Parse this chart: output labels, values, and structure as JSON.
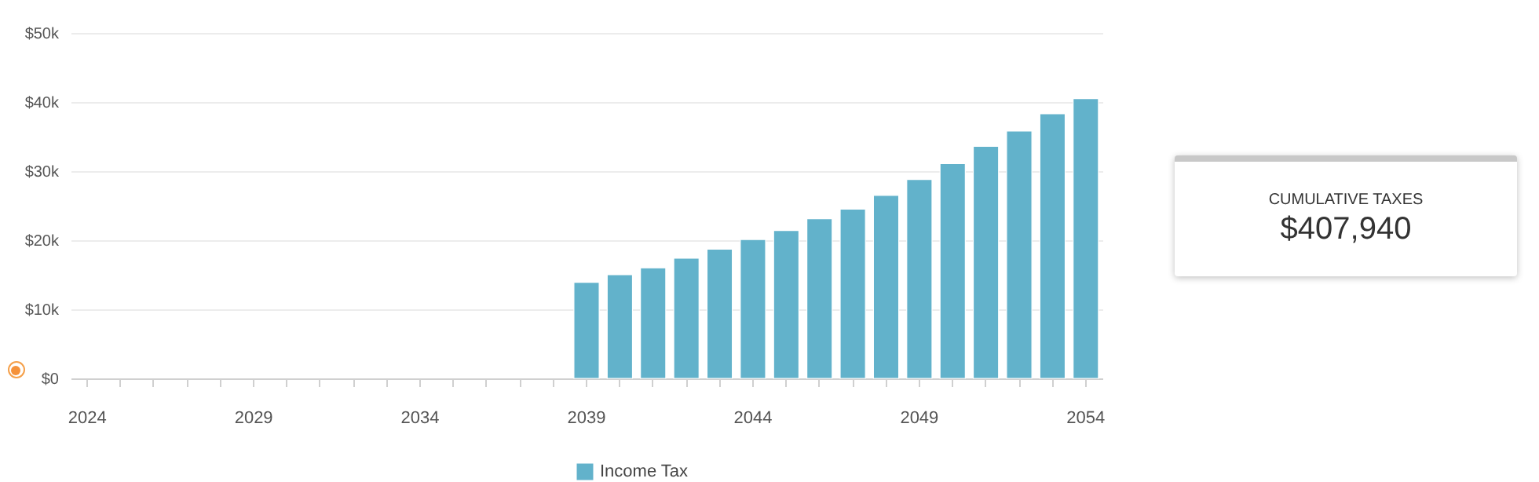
{
  "chart_data": [
    {
      "type": "bar",
      "categories": [
        "2024",
        null,
        null,
        null,
        null,
        "2029",
        null,
        null,
        null,
        null,
        "2034",
        null,
        null,
        null,
        null,
        "2039",
        null,
        null,
        null,
        null,
        "2044",
        null,
        null,
        null,
        null,
        "2049",
        null,
        null,
        null,
        null,
        "2054"
      ],
      "series": [
        {
          "name": "Income Tax",
          "color": "#62b2cb",
          "values": [
            null,
            null,
            null,
            null,
            null,
            null,
            null,
            null,
            null,
            null,
            null,
            null,
            null,
            null,
            null,
            13900,
            15000,
            16000,
            17400,
            18700,
            20100,
            21400,
            23100,
            24500,
            26500,
            28800,
            31100,
            33600,
            35800,
            38300,
            40500
          ]
        }
      ],
      "ylim": [
        0,
        50000
      ],
      "yticks": [
        {
          "value": 0,
          "label": "$0"
        },
        {
          "value": 10000,
          "label": "$10k"
        },
        {
          "value": 20000,
          "label": "$20k"
        },
        {
          "value": 30000,
          "label": "$30k"
        },
        {
          "value": 40000,
          "label": "$40k"
        },
        {
          "value": 50000,
          "label": "$50k"
        }
      ],
      "grid": "y",
      "legend": "bottom"
    },
    {
      "type": "other",
      "title": "CUMULATIVE TAXES",
      "annotations": [
        "$407,940"
      ]
    }
  ]
}
